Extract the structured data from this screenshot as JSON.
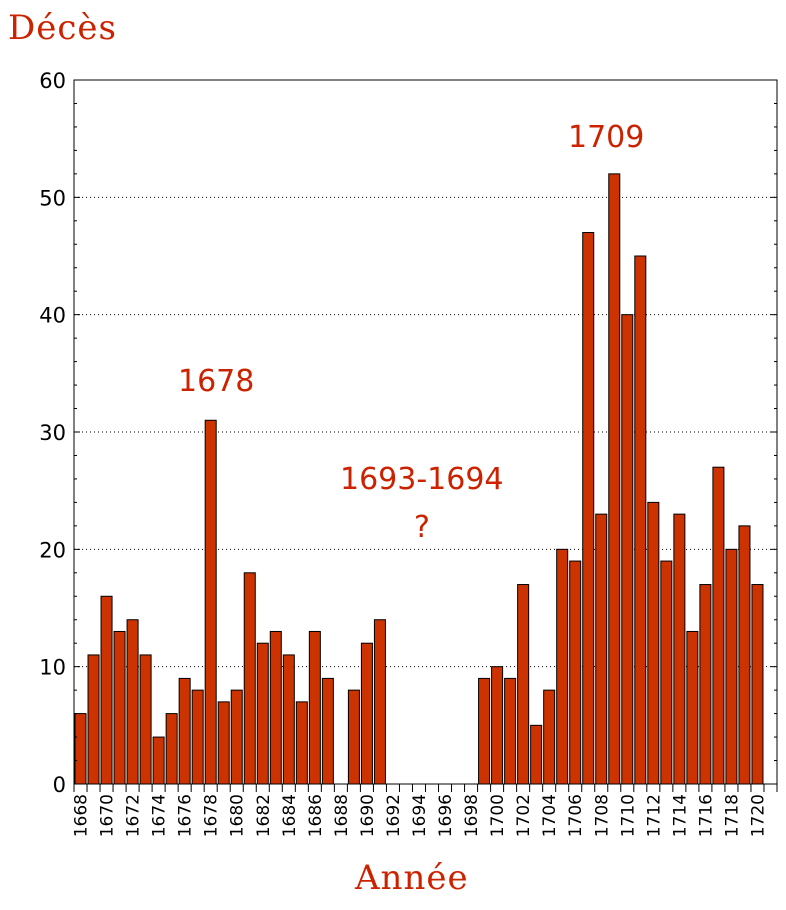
{
  "chart_data": {
    "type": "bar",
    "xlabel": "Année",
    "ylabel": "Décès",
    "ylim": [
      0,
      60
    ],
    "yticks": [
      0,
      10,
      20,
      30,
      40,
      50,
      60
    ],
    "grid": true,
    "colors": {
      "bar_fill": "#cc3300",
      "bar_stroke": "#000000",
      "text": "#cc2200"
    },
    "categories": [
      "1668",
      "1669",
      "1670",
      "1671",
      "1672",
      "1673",
      "1674",
      "1675",
      "1676",
      "1677",
      "1678",
      "1679",
      "1680",
      "1681",
      "1682",
      "1683",
      "1684",
      "1685",
      "1686",
      "1687",
      "1688",
      "1689",
      "1690",
      "1691",
      "1692",
      "1693",
      "1694",
      "1695",
      "1696",
      "1697",
      "1698",
      "1699",
      "1700",
      "1701",
      "1702",
      "1703",
      "1704",
      "1705",
      "1706",
      "1707",
      "1708",
      "1709",
      "1710",
      "1711",
      "1712",
      "1713",
      "1714",
      "1715",
      "1716",
      "1717",
      "1718",
      "1719",
      "1720",
      "1721"
    ],
    "xtick_labels": [
      "1668",
      "1670",
      "1672",
      "1674",
      "1676",
      "1678",
      "1680",
      "1682",
      "1684",
      "1686",
      "1688",
      "1690",
      "1692",
      "1694",
      "1696",
      "1698",
      "1700",
      "1702",
      "1704",
      "1706",
      "1708",
      "1710",
      "1712",
      "1714",
      "1716",
      "1718",
      "1720"
    ],
    "values": [
      6,
      11,
      16,
      13,
      14,
      11,
      4,
      6,
      9,
      8,
      31,
      7,
      8,
      18,
      12,
      13,
      11,
      7,
      13,
      9,
      null,
      8,
      12,
      14,
      null,
      null,
      null,
      null,
      null,
      null,
      null,
      9,
      10,
      9,
      17,
      5,
      8,
      20,
      19,
      47,
      23,
      52,
      40,
      45,
      24,
      19,
      23,
      13,
      17,
      27,
      20,
      22,
      17,
      null
    ],
    "annotations": [
      {
        "id": "1678",
        "text": "1678"
      },
      {
        "id": "1709",
        "text": "1709"
      },
      {
        "id": "gap",
        "text": "1693-1694"
      },
      {
        "id": "q",
        "text": "?"
      }
    ]
  }
}
